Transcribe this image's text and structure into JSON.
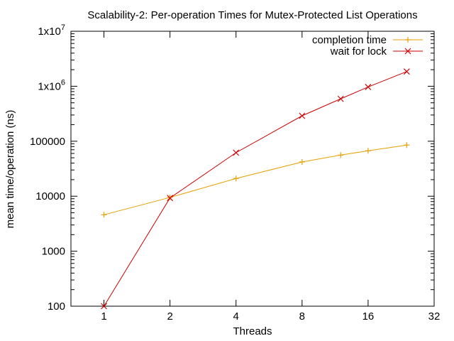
{
  "chart_data": {
    "type": "line",
    "title": "Scalability-2: Per-operation Times for Mutex-Protected List Operations",
    "xlabel": "Threads",
    "ylabel": "mean time/operation (ns)",
    "x_scale": "log2",
    "y_scale": "log10",
    "xlim": [
      0.7071,
      32
    ],
    "ylim": [
      100,
      10000000
    ],
    "x_ticks": [
      1,
      2,
      4,
      8,
      16,
      32
    ],
    "x_tick_labels": [
      "1",
      "2",
      "4",
      "8",
      "16",
      "32"
    ],
    "y_ticks": [
      100,
      1000,
      10000,
      100000,
      1000000,
      10000000
    ],
    "y_tick_labels": [
      {
        "base": "100",
        "exp": ""
      },
      {
        "base": "1000",
        "exp": ""
      },
      {
        "base": "10000",
        "exp": ""
      },
      {
        "base": "100000",
        "exp": ""
      },
      {
        "base": "1x10",
        "exp": "6"
      },
      {
        "base": "1x10",
        "exp": "7"
      }
    ],
    "grid": false,
    "legend_position": "top-right",
    "series": [
      {
        "name": "completion time",
        "color": "#e6a000",
        "marker": "plus",
        "x": [
          1,
          2,
          4,
          8,
          12,
          16,
          24
        ],
        "y": [
          4600,
          9500,
          21000,
          42000,
          56000,
          67000,
          85000
        ]
      },
      {
        "name": "wait for lock",
        "color": "#cc0000",
        "marker": "cross",
        "x": [
          1,
          2,
          4,
          8,
          12,
          16,
          24
        ],
        "y": [
          100,
          9300,
          62000,
          290000,
          590000,
          970000,
          1850000
        ]
      }
    ]
  }
}
